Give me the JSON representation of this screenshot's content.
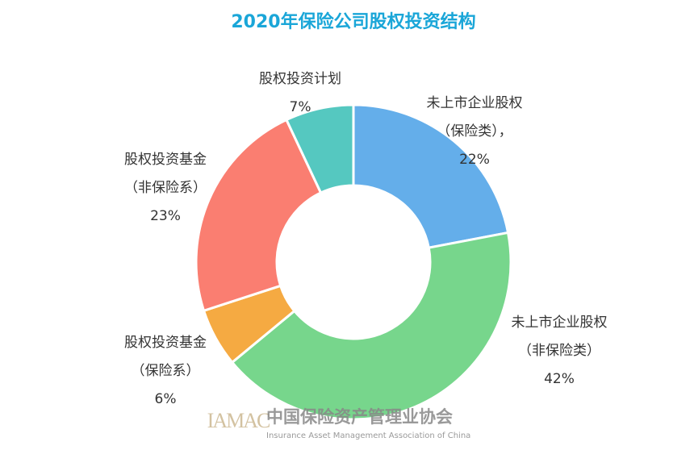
{
  "chart_data": {
    "type": "donut",
    "title": "2020年保险公司股权投资结构",
    "categories": [
      [
        "未上市企业股权",
        "（保险类），"
      ],
      [
        "未上市企业股权",
        "（非保险类）"
      ],
      [
        "股权投资基金",
        "（保险系）"
      ],
      [
        "股权投资基金",
        "（非保险系）"
      ],
      [
        "股权投资计划"
      ]
    ],
    "values": [
      22,
      42,
      6,
      23,
      7
    ],
    "value_labels": [
      "22%",
      "42%",
      "6%",
      "23%",
      "7%"
    ],
    "colors": [
      "#64aeea",
      "#77d68c",
      "#f5aa42",
      "#fa7e71",
      "#55c8c0"
    ],
    "watermark": {
      "logo": "IAMAC",
      "name": "中国保险资产管理业协会",
      "english": "Insurance Asset Management Association of China"
    }
  }
}
